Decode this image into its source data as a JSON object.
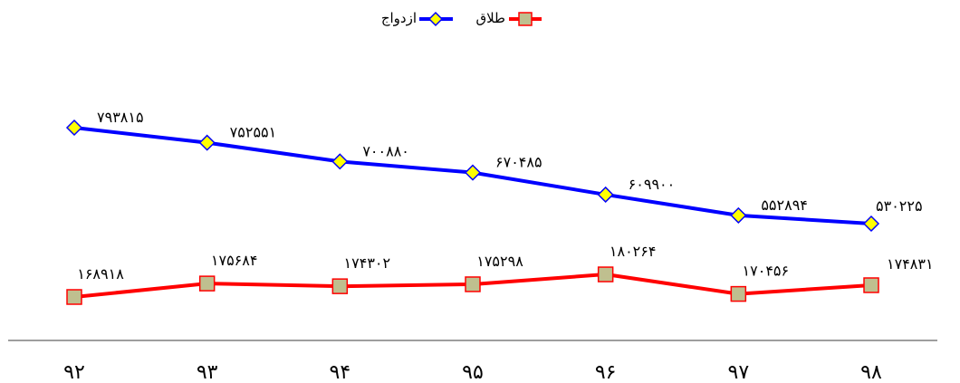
{
  "chart_data": {
    "type": "line",
    "categories": [
      "۹۲",
      "۹۳",
      "۹۴",
      "۹۵",
      "۹۶",
      "۹۷",
      "۹۸"
    ],
    "series": [
      {
        "name": "ازدواج",
        "color": "#0000FF",
        "marker": "diamond",
        "marker_color": "#FFFF00",
        "values": [
          793815,
          752551,
          700880,
          670485,
          609900,
          552894,
          530225
        ],
        "labels": [
          "۷۹۳۸۱۵",
          "۷۵۲۵۵۱",
          "۷۰۰۸۸۰",
          "۶۷۰۴۸۵",
          "۶۰۹۹۰۰",
          "۵۵۲۸۹۴",
          "۵۳۰۲۲۵"
        ]
      },
      {
        "name": "طلاق",
        "color": "#FF0000",
        "marker": "square",
        "marker_color": "#BFBF8F",
        "values": [
          168918,
          175684,
          174302,
          175298,
          180264,
          170456,
          174831
        ],
        "labels": [
          "۱۶۸۹۱۸",
          "۱۷۵۶۸۴",
          "۱۷۴۳۰۲",
          "۱۷۵۲۹۸",
          "۱۸۰۲۶۴",
          "۱۷۰۴۵۶",
          "۱۷۴۸۳۱"
        ]
      }
    ],
    "legend_position": "top-center",
    "grid": false,
    "axis_color": "#7F7F7F"
  }
}
